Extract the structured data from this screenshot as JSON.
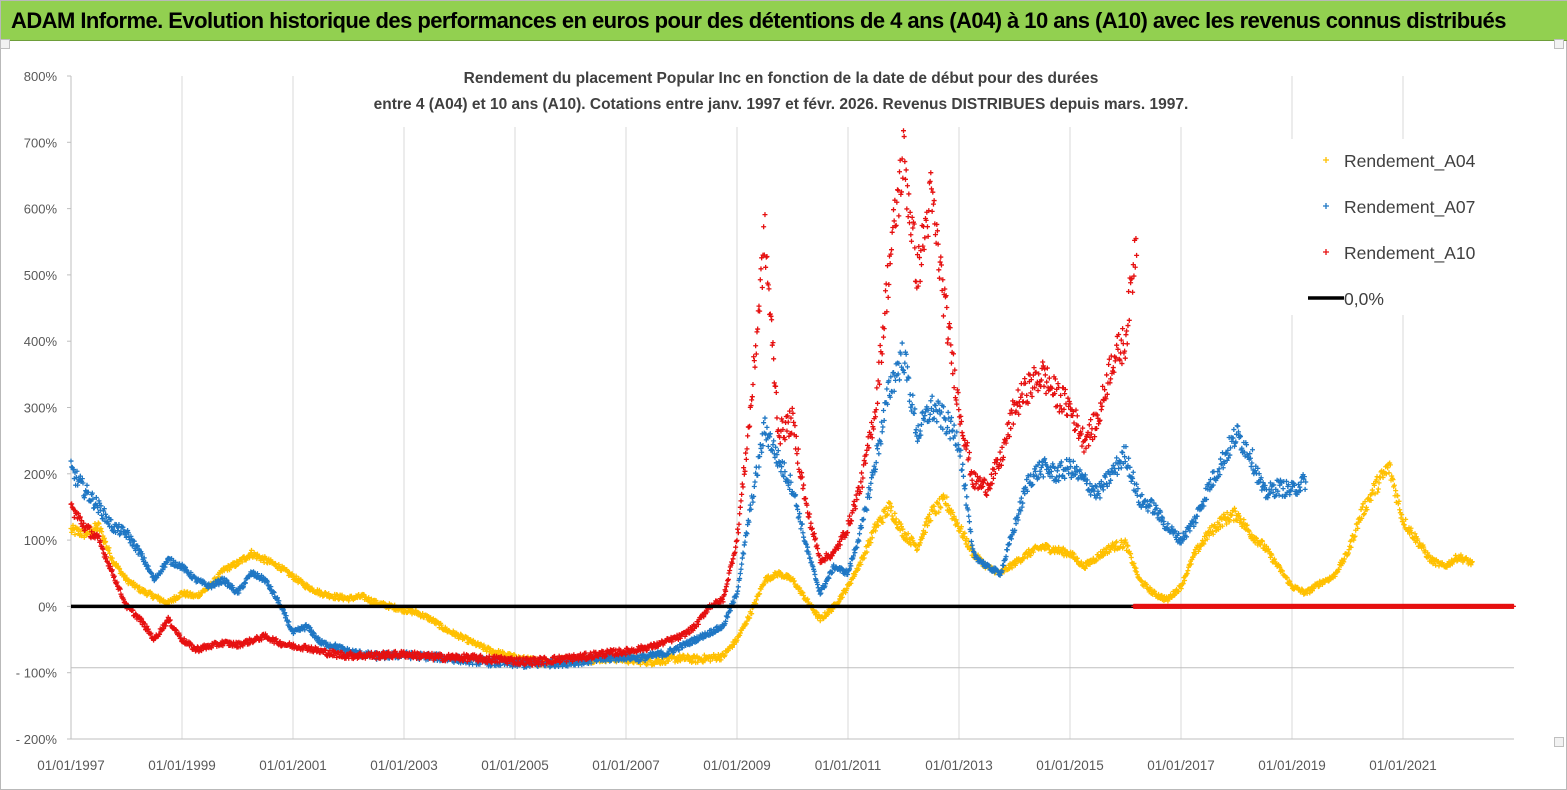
{
  "banner_title": "ADAM Informe. Evolution historique des performances en euros pour des détentions de 4 ans (A04) à 10 ans (A10) avec les revenus connus distribués",
  "chart_data": {
    "type": "scatter",
    "title": "Rendement du placement Popular Inc en fonction de la date de début pour des durées",
    "subtitle": "entre 4 (A04) et 10 ans (A10). Cotations entre janv. 1997 et févr. 2026. Revenus DISTRIBUES depuis mars. 1997.",
    "xlabel": "",
    "ylabel": "",
    "x_range": [
      1997.0,
      2023.0
    ],
    "ylim": [
      -200,
      800
    ],
    "y_ticks": [
      800,
      700,
      600,
      500,
      400,
      300,
      200,
      100,
      0,
      -100,
      -200
    ],
    "y_tick_labels": [
      "800%",
      "700%",
      "600%",
      "500%",
      "400%",
      "300%",
      "200%",
      "100%",
      "0%",
      "- 100%",
      "- 200%"
    ],
    "x_ticks": [
      1997,
      1999,
      2001,
      2003,
      2005,
      2007,
      2009,
      2011,
      2013,
      2015,
      2017,
      2019,
      2021
    ],
    "x_tick_labels": [
      "01/01/1997",
      "01/01/1999",
      "01/01/2001",
      "01/01/2003",
      "01/01/2005",
      "01/01/2007",
      "01/01/2009",
      "01/01/2011",
      "01/01/2013",
      "01/01/2015",
      "01/01/2017",
      "01/01/2019",
      "01/01/2021"
    ],
    "grid": "vertical",
    "legend_position": "top-right",
    "series": [
      {
        "name": "Rendement_A04",
        "color": "#ffc000",
        "marker": "plus",
        "points": [
          [
            1997.0,
            115
          ],
          [
            1997.25,
            110
          ],
          [
            1997.5,
            120
          ],
          [
            1997.75,
            70
          ],
          [
            1998.0,
            40
          ],
          [
            1998.25,
            25
          ],
          [
            1998.5,
            15
          ],
          [
            1998.75,
            5
          ],
          [
            1999.0,
            20
          ],
          [
            1999.25,
            15
          ],
          [
            1999.5,
            30
          ],
          [
            1999.75,
            55
          ],
          [
            2000.0,
            65
          ],
          [
            2000.25,
            80
          ],
          [
            2000.5,
            70
          ],
          [
            2000.75,
            60
          ],
          [
            2001.0,
            45
          ],
          [
            2001.25,
            30
          ],
          [
            2001.5,
            20
          ],
          [
            2001.75,
            15
          ],
          [
            2002.0,
            12
          ],
          [
            2002.25,
            15
          ],
          [
            2002.5,
            5
          ],
          [
            2002.75,
            0
          ],
          [
            2003.0,
            -5
          ],
          [
            2003.25,
            -10
          ],
          [
            2003.5,
            -20
          ],
          [
            2003.75,
            -35
          ],
          [
            2004.0,
            -45
          ],
          [
            2004.25,
            -55
          ],
          [
            2004.5,
            -65
          ],
          [
            2004.75,
            -72
          ],
          [
            2005.0,
            -78
          ],
          [
            2005.25,
            -82
          ],
          [
            2005.5,
            -84
          ],
          [
            2005.75,
            -83
          ],
          [
            2006.0,
            -80
          ],
          [
            2006.25,
            -80
          ],
          [
            2006.5,
            -79
          ],
          [
            2006.75,
            -78
          ],
          [
            2007.0,
            -80
          ],
          [
            2007.25,
            -82
          ],
          [
            2007.5,
            -83
          ],
          [
            2007.75,
            -80
          ],
          [
            2008.0,
            -78
          ],
          [
            2008.25,
            -80
          ],
          [
            2008.5,
            -78
          ],
          [
            2008.75,
            -75
          ],
          [
            2009.0,
            -50
          ],
          [
            2009.25,
            -10
          ],
          [
            2009.5,
            40
          ],
          [
            2009.75,
            50
          ],
          [
            2010.0,
            40
          ],
          [
            2010.25,
            10
          ],
          [
            2010.5,
            -20
          ],
          [
            2010.75,
            0
          ],
          [
            2011.0,
            30
          ],
          [
            2011.25,
            70
          ],
          [
            2011.5,
            120
          ],
          [
            2011.75,
            150
          ],
          [
            2012.0,
            110
          ],
          [
            2012.25,
            90
          ],
          [
            2012.5,
            140
          ],
          [
            2012.75,
            160
          ],
          [
            2013.0,
            120
          ],
          [
            2013.25,
            80
          ],
          [
            2013.5,
            60
          ],
          [
            2013.75,
            50
          ],
          [
            2014.0,
            65
          ],
          [
            2014.25,
            80
          ],
          [
            2014.5,
            90
          ],
          [
            2014.75,
            85
          ],
          [
            2015.0,
            80
          ],
          [
            2015.25,
            60
          ],
          [
            2015.5,
            75
          ],
          [
            2015.75,
            90
          ],
          [
            2016.0,
            95
          ],
          [
            2016.25,
            40
          ],
          [
            2016.5,
            20
          ],
          [
            2016.75,
            10
          ],
          [
            2017.0,
            30
          ],
          [
            2017.25,
            80
          ],
          [
            2017.5,
            110
          ],
          [
            2017.75,
            130
          ],
          [
            2018.0,
            140
          ],
          [
            2018.25,
            110
          ],
          [
            2018.5,
            90
          ],
          [
            2018.75,
            60
          ],
          [
            2019.0,
            30
          ],
          [
            2019.25,
            20
          ],
          [
            2019.5,
            35
          ],
          [
            2019.75,
            45
          ],
          [
            2020.0,
            80
          ],
          [
            2020.25,
            140
          ],
          [
            2020.5,
            180
          ],
          [
            2020.75,
            210
          ],
          [
            2021.0,
            130
          ],
          [
            2021.25,
            100
          ],
          [
            2021.5,
            70
          ],
          [
            2021.75,
            60
          ],
          [
            2022.0,
            75
          ],
          [
            2022.25,
            65
          ]
        ]
      },
      {
        "name": "Rendement_A07",
        "color": "#1f77c4",
        "marker": "plus",
        "points": [
          [
            1997.0,
            205
          ],
          [
            1997.25,
            175
          ],
          [
            1997.5,
            150
          ],
          [
            1997.75,
            120
          ],
          [
            1998.0,
            110
          ],
          [
            1998.25,
            80
          ],
          [
            1998.5,
            40
          ],
          [
            1998.75,
            70
          ],
          [
            1999.0,
            60
          ],
          [
            1999.25,
            40
          ],
          [
            1999.5,
            30
          ],
          [
            1999.75,
            40
          ],
          [
            2000.0,
            20
          ],
          [
            2000.25,
            50
          ],
          [
            2000.5,
            40
          ],
          [
            2000.75,
            5
          ],
          [
            2001.0,
            -40
          ],
          [
            2001.25,
            -30
          ],
          [
            2001.5,
            -55
          ],
          [
            2001.75,
            -60
          ],
          [
            2002.0,
            -68
          ],
          [
            2002.25,
            -72
          ],
          [
            2002.5,
            -75
          ],
          [
            2002.75,
            -74
          ],
          [
            2003.0,
            -73
          ],
          [
            2003.25,
            -75
          ],
          [
            2003.5,
            -76
          ],
          [
            2003.75,
            -78
          ],
          [
            2004.0,
            -80
          ],
          [
            2004.25,
            -82
          ],
          [
            2004.5,
            -84
          ],
          [
            2004.75,
            -85
          ],
          [
            2005.0,
            -86
          ],
          [
            2005.25,
            -87
          ],
          [
            2005.5,
            -86
          ],
          [
            2005.75,
            -85
          ],
          [
            2006.0,
            -84
          ],
          [
            2006.25,
            -82
          ],
          [
            2006.5,
            -80
          ],
          [
            2006.75,
            -78
          ],
          [
            2007.0,
            -76
          ],
          [
            2007.25,
            -78
          ],
          [
            2007.5,
            -74
          ],
          [
            2007.75,
            -70
          ],
          [
            2008.0,
            -60
          ],
          [
            2008.25,
            -50
          ],
          [
            2008.5,
            -40
          ],
          [
            2008.75,
            -30
          ],
          [
            2009.0,
            20
          ],
          [
            2009.25,
            150
          ],
          [
            2009.5,
            270
          ],
          [
            2009.75,
            220
          ],
          [
            2010.0,
            180
          ],
          [
            2010.25,
            90
          ],
          [
            2010.5,
            20
          ],
          [
            2010.75,
            60
          ],
          [
            2011.0,
            50
          ],
          [
            2011.25,
            120
          ],
          [
            2011.5,
            220
          ],
          [
            2011.75,
            330
          ],
          [
            2012.0,
            380
          ],
          [
            2012.25,
            260
          ],
          [
            2012.5,
            300
          ],
          [
            2012.75,
            280
          ],
          [
            2013.0,
            250
          ],
          [
            2013.25,
            80
          ],
          [
            2013.5,
            60
          ],
          [
            2013.75,
            50
          ],
          [
            2014.0,
            120
          ],
          [
            2014.25,
            190
          ],
          [
            2014.5,
            210
          ],
          [
            2014.75,
            200
          ],
          [
            2015.0,
            210
          ],
          [
            2015.25,
            190
          ],
          [
            2015.5,
            170
          ],
          [
            2015.75,
            200
          ],
          [
            2016.0,
            230
          ],
          [
            2016.25,
            160
          ],
          [
            2016.5,
            150
          ],
          [
            2016.75,
            120
          ],
          [
            2017.0,
            100
          ],
          [
            2017.25,
            130
          ],
          [
            2017.5,
            180
          ],
          [
            2017.75,
            220
          ],
          [
            2018.0,
            260
          ],
          [
            2018.25,
            230
          ],
          [
            2018.5,
            170
          ],
          [
            2018.75,
            180
          ],
          [
            2019.0,
            175
          ],
          [
            2019.25,
            190
          ]
        ]
      },
      {
        "name": "Rendement_A10",
        "color": "#e61010",
        "marker": "plus",
        "points": [
          [
            1997.0,
            150
          ],
          [
            1997.25,
            120
          ],
          [
            1997.5,
            100
          ],
          [
            1997.75,
            50
          ],
          [
            1998.0,
            0
          ],
          [
            1998.25,
            -20
          ],
          [
            1998.5,
            -50
          ],
          [
            1998.75,
            -20
          ],
          [
            1999.0,
            -50
          ],
          [
            1999.25,
            -65
          ],
          [
            1999.5,
            -60
          ],
          [
            1999.75,
            -55
          ],
          [
            2000.0,
            -58
          ],
          [
            2000.25,
            -52
          ],
          [
            2000.5,
            -45
          ],
          [
            2000.75,
            -55
          ],
          [
            2001.0,
            -60
          ],
          [
            2001.25,
            -62
          ],
          [
            2001.5,
            -68
          ],
          [
            2001.75,
            -72
          ],
          [
            2002.0,
            -74
          ],
          [
            2002.25,
            -74
          ],
          [
            2002.5,
            -74
          ],
          [
            2002.75,
            -73
          ],
          [
            2003.0,
            -72
          ],
          [
            2003.25,
            -74
          ],
          [
            2003.5,
            -76
          ],
          [
            2003.75,
            -77
          ],
          [
            2004.0,
            -77
          ],
          [
            2004.25,
            -78
          ],
          [
            2004.5,
            -80
          ],
          [
            2004.75,
            -80
          ],
          [
            2005.0,
            -82
          ],
          [
            2005.25,
            -83
          ],
          [
            2005.5,
            -82
          ],
          [
            2005.75,
            -80
          ],
          [
            2006.0,
            -78
          ],
          [
            2006.25,
            -76
          ],
          [
            2006.5,
            -72
          ],
          [
            2006.75,
            -70
          ],
          [
            2007.0,
            -68
          ],
          [
            2007.25,
            -64
          ],
          [
            2007.5,
            -60
          ],
          [
            2007.75,
            -52
          ],
          [
            2008.0,
            -45
          ],
          [
            2008.25,
            -30
          ],
          [
            2008.5,
            0
          ],
          [
            2008.75,
            10
          ],
          [
            2009.0,
            100
          ],
          [
            2009.25,
            300
          ],
          [
            2009.5,
            560
          ],
          [
            2009.75,
            260
          ],
          [
            2010.0,
            280
          ],
          [
            2010.25,
            150
          ],
          [
            2010.5,
            70
          ],
          [
            2010.75,
            80
          ],
          [
            2011.0,
            120
          ],
          [
            2011.25,
            190
          ],
          [
            2011.5,
            300
          ],
          [
            2011.75,
            520
          ],
          [
            2012.0,
            680
          ],
          [
            2012.25,
            500
          ],
          [
            2012.5,
            620
          ],
          [
            2012.75,
            450
          ],
          [
            2013.0,
            300
          ],
          [
            2013.25,
            190
          ],
          [
            2013.5,
            180
          ],
          [
            2013.75,
            220
          ],
          [
            2014.0,
            300
          ],
          [
            2014.25,
            330
          ],
          [
            2014.5,
            350
          ],
          [
            2014.75,
            320
          ],
          [
            2015.0,
            300
          ],
          [
            2015.25,
            250
          ],
          [
            2015.5,
            280
          ],
          [
            2015.75,
            370
          ],
          [
            2016.0,
            400
          ],
          [
            2016.2,
            560
          ]
        ]
      },
      {
        "name": "0,0%",
        "color": "#000000",
        "marker": "line",
        "points": [
          [
            1997.0,
            0
          ],
          [
            2016.15,
            0
          ]
        ]
      }
    ],
    "tail_flat_series": {
      "name": "Rendement_A10",
      "value": 0,
      "from": 2016.15,
      "to": 2023.0
    }
  }
}
